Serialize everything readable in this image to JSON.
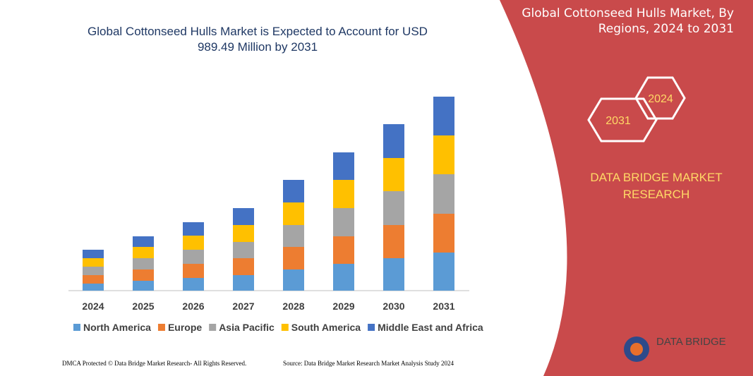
{
  "chart_data": {
    "type": "stacked_bar",
    "title": "Global Cottonseed Hulls Market is Expected to Account for USD 989.49 Million by 2031",
    "categories": [
      "2024",
      "2025",
      "2026",
      "2027",
      "2028",
      "2029",
      "2030",
      "2031"
    ],
    "series": [
      {
        "name": "North America",
        "color": "#5b9bd5",
        "values": [
          10,
          14,
          18,
          22,
          30,
          38,
          46,
          54
        ]
      },
      {
        "name": "Europe",
        "color": "#ed7d31",
        "values": [
          12,
          16,
          20,
          24,
          32,
          39,
          47,
          55
        ]
      },
      {
        "name": "Asia Pacific",
        "color": "#a5a5a5",
        "values": [
          12,
          16,
          20,
          23,
          31,
          40,
          48,
          56
        ]
      },
      {
        "name": "South America",
        "color": "#ffc000",
        "values": [
          12,
          16,
          20,
          24,
          32,
          40,
          47,
          55
        ]
      },
      {
        "name": "Middle East and Africa",
        "color": "#4472c4",
        "values": [
          12,
          15,
          19,
          24,
          32,
          39,
          48,
          55
        ]
      }
    ]
  },
  "panel": {
    "title": "Global Cottonseed Hulls Market, By Regions, 2024 to 2031",
    "badge_end": "2031",
    "badge_start": "2024",
    "brand": "DATA BRIDGE MARKET RESEARCH",
    "logo": "DATA BRIDGE"
  },
  "footer": {
    "left": "DMCA Protected © Data Bridge Market Research- All Rights Reserved.",
    "right": "Source: Data Bridge Market Research Market Analysis Study 2024"
  }
}
